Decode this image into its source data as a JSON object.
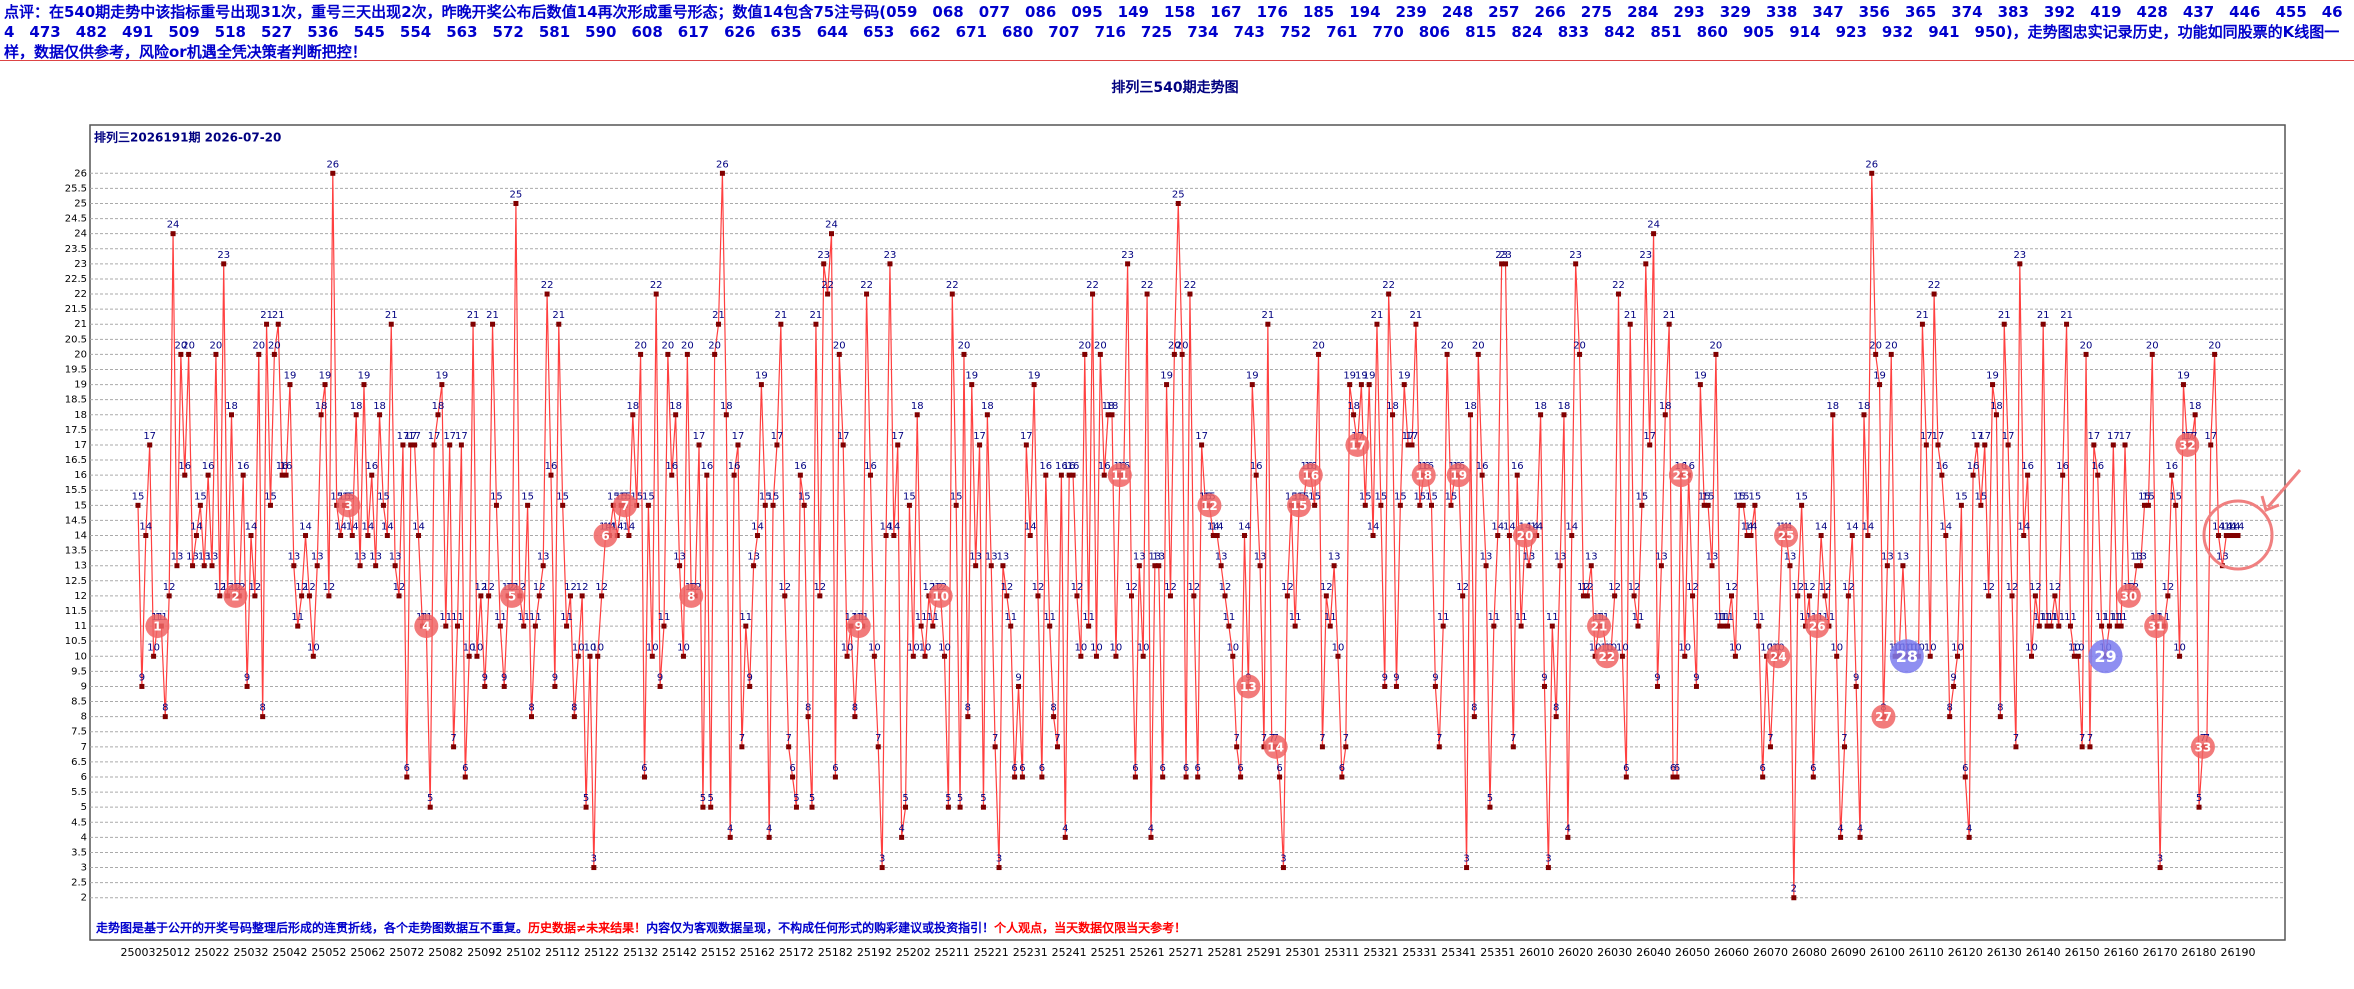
{
  "header": {
    "text": "点评：在540期走势中该指标重号出现31次，重号三天出现2次，昨晚开奖公布后数值14再次形成重号形态；数值14包含75注号码(059　068　077　086　095　149　158　167　176　185　194　239　248　257　266　275　284　293　329　338　347　356　365　374　383　392　419　428　437　446　455　464　473　482　491　509　518　527　536　545　554　563　572　581　590　608　617　626　635　644　653　662　671　680　707　716　725　734　743　752　761　770　806　815　824　833　842　851　860　905　914　923　932　941　950)，走势图忠实记录历史，功能如同股票的K线图一样，数据仅供参考，风险or机遇全凭决策者判断把控！"
  },
  "chart_data": {
    "type": "line",
    "title": "排列三540期走势图",
    "subtitle": "排列三2026191期 2026-07-20",
    "annotations": [
      {
        "text": "走势图是基于公开的开奖号码整理后形成的连贯折线，各个走势图数据互不重复。",
        "color": "#0000cc"
      },
      {
        "text": "历史数据≠未来结果！",
        "color": "#ff0000"
      },
      {
        "text": "内容仅为客观数据呈现，不构成任何形式的购彩建议或投资指引！",
        "color": "#0000cc"
      },
      {
        "text": "个人观点，当天数据仅限当天参考！",
        "color": "#ff0000"
      }
    ],
    "line_color": "#ff4040",
    "point_color": "#800000",
    "label_color": "#000080",
    "grid": true,
    "highlight_color": "#f06464",
    "ylim": [
      0.6,
      27.6
    ],
    "yticks": [
      2,
      2.5,
      3,
      3.5,
      4,
      4.5,
      5,
      5.5,
      6,
      6.5,
      7,
      7.5,
      8,
      8.5,
      9,
      9.5,
      10,
      10.5,
      11,
      11.5,
      12,
      12.5,
      13,
      13.5,
      14,
      14.5,
      15,
      15.5,
      16,
      16.5,
      17,
      17.5,
      18,
      18.5,
      19,
      19.5,
      20,
      20.5,
      21,
      21.5,
      22,
      22.5,
      23,
      23.5,
      24,
      24.5,
      25,
      25.5,
      26
    ],
    "categories": [
      "25003",
      null,
      null,
      null,
      null,
      null,
      null,
      null,
      null,
      "25012",
      null,
      null,
      null,
      null,
      null,
      null,
      null,
      null,
      null,
      "25022",
      null,
      null,
      null,
      null,
      null,
      null,
      null,
      null,
      null,
      "25032",
      null,
      null,
      null,
      null,
      null,
      null,
      null,
      null,
      null,
      "25042",
      null,
      null,
      null,
      null,
      null,
      null,
      null,
      null,
      null,
      "25052",
      null,
      null,
      null,
      null,
      null,
      null,
      null,
      null,
      null,
      "25062",
      null,
      null,
      null,
      null,
      null,
      null,
      null,
      null,
      null,
      "25072",
      null,
      null,
      null,
      null,
      null,
      null,
      null,
      null,
      null,
      "25082",
      null,
      null,
      null,
      null,
      null,
      null,
      null,
      null,
      null,
      "25092",
      null,
      null,
      null,
      null,
      null,
      null,
      null,
      null,
      null,
      "25102",
      null,
      null,
      null,
      null,
      null,
      null,
      null,
      null,
      null,
      "25112",
      null,
      null,
      null,
      null,
      null,
      null,
      null,
      null,
      null,
      "25122",
      null,
      null,
      null,
      null,
      null,
      null,
      null,
      null,
      null,
      "25132",
      null,
      null,
      null,
      null,
      null,
      null,
      null,
      null,
      null,
      "25142",
      null,
      null,
      null,
      null,
      null,
      null,
      null,
      null,
      null,
      "25152",
      null,
      null,
      null,
      null,
      null,
      null,
      null,
      null,
      null,
      "25162",
      null,
      null,
      null,
      null,
      null,
      null,
      null,
      null,
      null,
      "25172",
      null,
      null,
      null,
      null,
      null,
      null,
      null,
      null,
      null,
      "25182",
      null,
      null,
      null,
      null,
      null,
      null,
      null,
      null,
      null,
      "25192",
      null,
      null,
      null,
      null,
      null,
      null,
      null,
      null,
      null,
      "25202",
      null,
      null,
      null,
      null,
      null,
      null,
      null,
      null,
      null,
      "25211",
      null,
      null,
      null,
      null,
      null,
      null,
      null,
      null,
      null,
      "25221",
      null,
      null,
      null,
      null,
      null,
      null,
      null,
      null,
      null,
      "25231",
      null,
      null,
      null,
      null,
      null,
      null,
      null,
      null,
      null,
      "25241",
      null,
      null,
      null,
      null,
      null,
      null,
      null,
      null,
      null,
      "25251",
      null,
      null,
      null,
      null,
      null,
      null,
      null,
      null,
      null,
      "25261",
      null,
      null,
      null,
      null,
      null,
      null,
      null,
      null,
      null,
      "25271",
      null,
      null,
      null,
      null,
      null,
      null,
      null,
      null,
      null,
      "25281",
      null,
      null,
      null,
      null,
      null,
      null,
      null,
      null,
      null,
      "25291",
      null,
      null,
      null,
      null,
      null,
      null,
      null,
      null,
      null,
      "25301",
      null,
      null,
      null,
      null,
      null,
      null,
      null,
      null,
      null,
      "25311",
      null,
      null,
      null,
      null,
      null,
      null,
      null,
      null,
      null,
      "25321",
      null,
      null,
      null,
      null,
      null,
      null,
      null,
      null,
      null,
      "25331",
      null,
      null,
      null,
      null,
      null,
      null,
      null,
      null,
      null,
      "25341",
      null,
      null,
      null,
      null,
      null,
      null,
      null,
      null,
      null,
      "25351",
      null,
      null,
      null,
      null,
      null,
      null,
      null,
      null,
      null,
      "26010",
      null,
      null,
      null,
      null,
      null,
      null,
      null,
      null,
      null,
      "26020",
      null,
      null,
      null,
      null,
      null,
      null,
      null,
      null,
      null,
      "26030",
      null,
      null,
      null,
      null,
      null,
      null,
      null,
      null,
      null,
      "26040",
      null,
      null,
      null,
      null,
      null,
      null,
      null,
      null,
      null,
      "26050",
      null,
      null,
      null,
      null,
      null,
      null,
      null,
      null,
      null,
      "26060",
      null,
      null,
      null,
      null,
      null,
      null,
      null,
      null,
      null,
      "26070",
      null,
      null,
      null,
      null,
      null,
      null,
      null,
      null,
      null,
      "26080",
      null,
      null,
      null,
      null,
      null,
      null,
      null,
      null,
      null,
      "26090",
      null,
      null,
      null,
      null,
      null,
      null,
      null,
      null,
      null,
      "26100",
      null,
      null,
      null,
      null,
      null,
      null,
      null,
      null,
      null,
      "26110",
      null,
      null,
      null,
      null,
      null,
      null,
      null,
      null,
      null,
      "26120",
      null,
      null,
      null,
      null,
      null,
      null,
      null,
      null,
      null,
      "26130",
      null,
      null,
      null,
      null,
      null,
      null,
      null,
      null,
      null,
      "26140",
      null,
      null,
      null,
      null,
      null,
      null,
      null,
      null,
      null,
      "26150",
      null,
      null,
      null,
      null,
      null,
      null,
      null,
      null,
      null,
      "26160",
      null,
      null,
      null,
      null,
      null,
      null,
      null,
      null,
      null,
      "26170",
      null,
      null,
      null,
      null,
      null,
      null,
      null,
      null,
      null,
      "26180",
      null,
      null,
      null,
      null,
      null,
      null,
      null,
      null,
      null,
      "26190"
    ],
    "values": [
      15,
      9,
      14,
      17,
      10,
      11,
      11,
      8,
      12,
      24,
      13,
      20,
      16,
      20,
      13,
      14,
      15,
      13,
      16,
      13,
      20,
      12,
      23,
      12,
      18,
      12,
      12,
      16,
      9,
      14,
      12,
      20,
      8,
      21,
      15,
      20,
      21,
      16,
      16,
      19,
      13,
      11,
      12,
      14,
      12,
      10,
      13,
      18,
      19,
      12,
      26,
      15,
      14,
      15,
      15,
      14,
      18,
      13,
      19,
      14,
      16,
      13,
      18,
      15,
      14,
      21,
      13,
      12,
      17,
      6,
      17,
      17,
      14,
      11,
      11,
      5,
      17,
      18,
      19,
      11,
      17,
      7,
      11,
      17,
      6,
      10,
      21,
      10,
      12,
      9,
      12,
      21,
      15,
      11,
      9,
      12,
      12,
      25,
      12,
      11,
      15,
      8,
      11,
      12,
      13,
      22,
      16,
      9,
      21,
      15,
      11,
      12,
      8,
      10,
      12,
      5,
      10,
      3,
      10,
      12,
      14,
      14,
      15,
      14,
      15,
      15,
      14,
      18,
      15,
      20,
      6,
      15,
      10,
      22,
      9,
      11,
      20,
      16,
      18,
      13,
      10,
      20,
      12,
      12,
      17,
      5,
      16,
      5,
      20,
      21,
      26,
      18,
      4,
      16,
      17,
      7,
      11,
      9,
      13,
      14,
      19,
      15,
      4,
      15,
      17,
      21,
      12,
      7,
      6,
      5,
      16,
      15,
      8,
      5,
      21,
      12,
      23,
      22,
      24,
      6,
      20,
      17,
      10,
      11,
      8,
      11,
      11,
      22,
      16,
      10,
      7,
      3,
      14,
      23,
      14,
      17,
      4,
      5,
      15,
      10,
      18,
      11,
      10,
      12,
      11,
      12,
      12,
      10,
      5,
      22,
      15,
      5,
      20,
      8,
      19,
      13,
      17,
      5,
      18,
      13,
      7,
      3,
      13,
      12,
      11,
      6,
      9,
      6,
      17,
      14,
      19,
      12,
      6,
      16,
      11,
      8,
      7,
      16,
      4,
      16,
      16,
      12,
      10,
      20,
      11,
      22,
      10,
      20,
      16,
      18,
      18,
      10,
      16,
      16,
      23,
      12,
      6,
      13,
      10,
      22,
      4,
      13,
      13,
      6,
      19,
      12,
      20,
      25,
      20,
      6,
      22,
      12,
      6,
      17,
      15,
      15,
      14,
      14,
      13,
      12,
      11,
      10,
      7,
      6,
      14,
      9,
      19,
      16,
      13,
      7,
      21,
      7,
      7,
      6,
      3,
      12,
      15,
      11,
      15,
      15,
      16,
      16,
      15,
      20,
      7,
      12,
      11,
      13,
      10,
      6,
      7,
      19,
      18,
      17,
      19,
      15,
      19,
      14,
      21,
      15,
      9,
      22,
      18,
      9,
      15,
      19,
      17,
      17,
      21,
      15,
      16,
      16,
      15,
      9,
      7,
      11,
      20,
      15,
      16,
      16,
      12,
      3,
      18,
      8,
      20,
      16,
      13,
      5,
      11,
      14,
      23,
      23,
      14,
      7,
      16,
      11,
      14,
      13,
      14,
      14,
      18,
      9,
      3,
      11,
      8,
      13,
      18,
      4,
      14,
      23,
      20,
      12,
      12,
      13,
      10,
      11,
      11,
      10,
      10,
      12,
      22,
      10,
      6,
      21,
      12,
      11,
      15,
      23,
      17,
      24,
      9,
      13,
      18,
      21,
      6,
      6,
      16,
      10,
      16,
      12,
      9,
      19,
      15,
      15,
      13,
      20,
      11,
      11,
      11,
      12,
      10,
      15,
      15,
      14,
      14,
      15,
      11,
      6,
      10,
      7,
      10,
      10,
      14,
      14,
      13,
      2,
      12,
      15,
      11,
      12,
      6,
      11,
      14,
      12,
      11,
      18,
      10,
      4,
      7,
      12,
      14,
      9,
      4,
      18,
      14,
      26,
      20,
      19,
      8,
      13,
      20,
      10,
      10,
      13,
      10,
      10,
      10,
      10,
      21,
      17,
      10,
      22,
      17,
      16,
      14,
      8,
      9,
      10,
      15,
      6,
      4,
      16,
      17,
      15,
      17,
      12,
      19,
      18,
      8,
      21,
      17,
      12,
      7,
      23,
      14,
      16,
      10,
      12,
      11,
      21,
      11,
      11,
      12,
      11,
      16,
      21,
      11,
      10,
      10,
      7,
      20,
      7,
      17,
      16,
      11,
      10,
      11,
      17,
      11,
      11,
      17,
      12,
      12,
      13,
      13,
      15,
      15,
      20,
      11,
      3,
      11,
      12,
      16,
      15,
      10,
      19,
      17,
      17,
      18,
      5,
      7,
      7,
      17,
      20,
      14,
      13,
      14,
      14,
      14,
      14
    ],
    "highlights": [
      {
        "label": "1",
        "index": 5
      },
      {
        "label": "2",
        "index": 25
      },
      {
        "label": "3",
        "index": 54
      },
      {
        "label": "4",
        "index": 74
      },
      {
        "label": "5",
        "index": 96
      },
      {
        "label": "6",
        "index": 120
      },
      {
        "label": "7",
        "index": 125
      },
      {
        "label": "8",
        "index": 142
      },
      {
        "label": "9",
        "index": 185
      },
      {
        "label": "10",
        "index": 206
      },
      {
        "label": "11",
        "index": 252
      },
      {
        "label": "12",
        "index": 275
      },
      {
        "label": "13",
        "index": 285
      },
      {
        "label": "14",
        "index": 292
      },
      {
        "label": "15",
        "index": 298
      },
      {
        "label": "16",
        "index": 301
      },
      {
        "label": "17",
        "index": 313
      },
      {
        "label": "18",
        "index": 330
      },
      {
        "label": "19",
        "index": 339
      },
      {
        "label": "20",
        "index": 356
      },
      {
        "label": "21",
        "index": 375
      },
      {
        "label": "22",
        "index": 377
      },
      {
        "label": "23",
        "index": 396
      },
      {
        "label": "24",
        "index": 421
      },
      {
        "label": "25",
        "index": 423
      },
      {
        "label": "26",
        "index": 431
      },
      {
        "label": "27",
        "index": 448
      },
      {
        "label": "28",
        "index": 454,
        "color": "#7b7bef"
      },
      {
        "label": "29",
        "index": 505,
        "color": "#7b7bef"
      },
      {
        "label": "30",
        "index": 511
      },
      {
        "label": "31",
        "index": 518
      },
      {
        "label": "32",
        "index": 526
      },
      {
        "label": "33",
        "index": 530
      }
    ]
  }
}
